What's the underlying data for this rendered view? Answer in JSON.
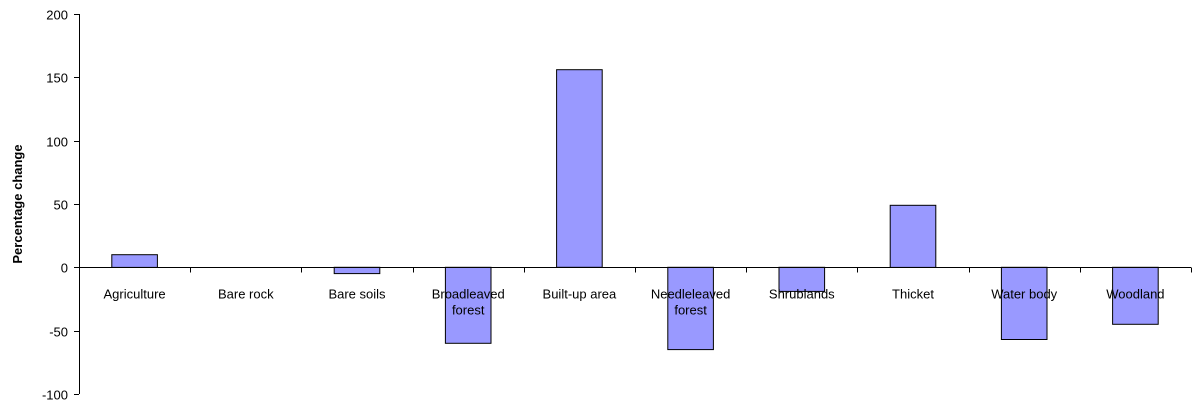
{
  "chart_data": {
    "type": "bar",
    "title": "",
    "xlabel": "",
    "ylabel": "Percentage change",
    "ylim": [
      -100,
      200
    ],
    "yticks": [
      -100,
      -50,
      0,
      50,
      100,
      150,
      200
    ],
    "grid": false,
    "legend": "none",
    "bar_color": "#9999ff",
    "bar_stroke": "#000000",
    "categories": [
      "Agriculture",
      "Bare rock",
      "Bare soils",
      "Broadleaved forest",
      "Built-up area",
      "Needleleaved forest",
      "Shrublands",
      "Thicket",
      "Water body",
      "Woodland"
    ],
    "category_lines": [
      [
        "Agriculture"
      ],
      [
        "Bare rock"
      ],
      [
        "Bare soils"
      ],
      [
        "Broadleaved",
        "forest"
      ],
      [
        "Built-up area"
      ],
      [
        "Needleleaved",
        "forest"
      ],
      [
        "Shrublands"
      ],
      [
        "Thicket"
      ],
      [
        "Water body"
      ],
      [
        "Woodland"
      ]
    ],
    "values": [
      10,
      0,
      -5,
      -60,
      156,
      -65,
      -19,
      49,
      -57,
      -45
    ]
  }
}
